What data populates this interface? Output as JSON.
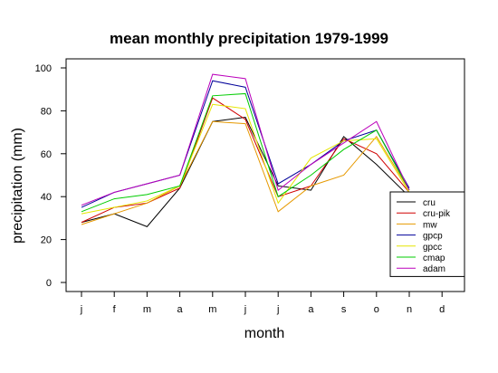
{
  "chart_data": {
    "type": "line",
    "title": "mean monthly precipitation 1979-1999",
    "xlabel": "month",
    "ylabel": "precipitation (mm)",
    "categories": [
      "j",
      "f",
      "m",
      "a",
      "m",
      "j",
      "j",
      "a",
      "s",
      "o",
      "n",
      "d"
    ],
    "yticks": [
      0,
      20,
      40,
      60,
      80,
      100
    ],
    "ylim": [
      0,
      100
    ],
    "legend_position": "bottom-right",
    "grid": false,
    "series": [
      {
        "name": "cru",
        "color": "#000000",
        "values": [
          28,
          32,
          26,
          44,
          75,
          77,
          45,
          43,
          68,
          55,
          40,
          null
        ]
      },
      {
        "name": "cru-pik",
        "color": "#d00000",
        "values": [
          28,
          35,
          37,
          44,
          86,
          76,
          40,
          45,
          67,
          60,
          42,
          null
        ]
      },
      {
        "name": "mw",
        "color": "#e69900",
        "values": [
          27,
          32,
          37,
          45,
          75,
          74,
          33,
          45,
          50,
          68,
          43,
          null
        ]
      },
      {
        "name": "gpcp",
        "color": "#000099",
        "values": [
          35,
          42,
          46,
          50,
          94,
          91,
          46,
          55,
          66,
          71,
          44,
          null
        ]
      },
      {
        "name": "gpcc",
        "color": "#e6e600",
        "values": [
          32,
          35,
          38,
          45,
          83,
          81,
          37,
          58,
          66,
          67,
          42,
          null
        ]
      },
      {
        "name": "cmap",
        "color": "#00cc00",
        "values": [
          33,
          39,
          41,
          45,
          87,
          88,
          40,
          50,
          62,
          71,
          43,
          null
        ]
      },
      {
        "name": "adam",
        "color": "#bb00bb",
        "values": [
          36,
          42,
          46,
          50,
          97,
          95,
          43,
          55,
          65,
          75,
          43,
          null
        ]
      }
    ]
  }
}
